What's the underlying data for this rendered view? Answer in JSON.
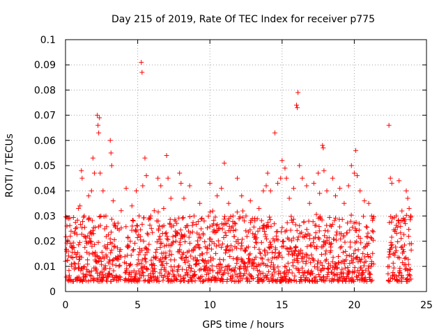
{
  "chart_data": {
    "type": "scatter",
    "title": "Day 215 of 2019, Rate Of TEC Index for receiver p775",
    "xlabel": "GPS time / hours",
    "ylabel": "ROTI / TECUs",
    "xlim": [
      0,
      25
    ],
    "ylim": [
      0,
      0.1
    ],
    "xticks": [
      0,
      5,
      10,
      15,
      20,
      25
    ],
    "yticks": [
      0,
      0.01,
      0.02,
      0.03,
      0.04,
      0.05,
      0.06,
      0.07,
      0.08,
      0.09,
      0.1
    ],
    "xtick_labels": [
      "0",
      "5",
      "10",
      "15",
      "20",
      "25"
    ],
    "ytick_labels": [
      "0",
      "0.01",
      "0.02",
      "0.03",
      "0.04",
      "0.05",
      "0.06",
      "0.07",
      "0.08",
      "0.09",
      "0.1"
    ],
    "grid": true,
    "marker": "+",
    "color": "#ff0000",
    "data_gaps_hours": [
      [
        3.85,
        4.05
      ],
      [
        21.35,
        22.3
      ]
    ],
    "series": [
      {
        "name": "ROTI",
        "points": [
          [
            0.1,
            0.026
          ],
          [
            0.2,
            0.029
          ],
          [
            0.4,
            0.018
          ],
          [
            0.7,
            0.025
          ],
          [
            0.9,
            0.033
          ],
          [
            1.0,
            0.034
          ],
          [
            1.1,
            0.048
          ],
          [
            1.15,
            0.045
          ],
          [
            1.3,
            0.03
          ],
          [
            1.6,
            0.038
          ],
          [
            1.8,
            0.04
          ],
          [
            1.9,
            0.053
          ],
          [
            2.0,
            0.047
          ],
          [
            2.2,
            0.07
          ],
          [
            2.25,
            0.066
          ],
          [
            2.3,
            0.063
          ],
          [
            2.35,
            0.069
          ],
          [
            2.4,
            0.047
          ],
          [
            2.6,
            0.04
          ],
          [
            2.8,
            0.03
          ],
          [
            3.1,
            0.06
          ],
          [
            3.15,
            0.055
          ],
          [
            3.2,
            0.05
          ],
          [
            3.3,
            0.036
          ],
          [
            3.6,
            0.025
          ],
          [
            4.2,
            0.041
          ],
          [
            4.6,
            0.034
          ],
          [
            4.9,
            0.04
          ],
          [
            5.1,
            0.03
          ],
          [
            5.25,
            0.091
          ],
          [
            5.3,
            0.087
          ],
          [
            5.35,
            0.042
          ],
          [
            5.5,
            0.053
          ],
          [
            5.6,
            0.046
          ],
          [
            5.9,
            0.03
          ],
          [
            6.4,
            0.045
          ],
          [
            6.6,
            0.042
          ],
          [
            6.8,
            0.033
          ],
          [
            7.0,
            0.054
          ],
          [
            7.1,
            0.045
          ],
          [
            7.3,
            0.037
          ],
          [
            7.6,
            0.028
          ],
          [
            7.9,
            0.047
          ],
          [
            8.0,
            0.043
          ],
          [
            8.2,
            0.037
          ],
          [
            8.6,
            0.042
          ],
          [
            8.9,
            0.03
          ],
          [
            9.3,
            0.035
          ],
          [
            9.6,
            0.028
          ],
          [
            10.0,
            0.043
          ],
          [
            10.2,
            0.032
          ],
          [
            10.5,
            0.038
          ],
          [
            10.8,
            0.041
          ],
          [
            11.0,
            0.051
          ],
          [
            11.3,
            0.035
          ],
          [
            11.6,
            0.03
          ],
          [
            11.9,
            0.045
          ],
          [
            12.2,
            0.038
          ],
          [
            12.5,
            0.03
          ],
          [
            12.8,
            0.036
          ],
          [
            13.1,
            0.029
          ],
          [
            13.4,
            0.033
          ],
          [
            13.7,
            0.04
          ],
          [
            13.9,
            0.042
          ],
          [
            14.0,
            0.047
          ],
          [
            14.2,
            0.04
          ],
          [
            14.5,
            0.063
          ],
          [
            14.7,
            0.043
          ],
          [
            14.9,
            0.045
          ],
          [
            15.0,
            0.052
          ],
          [
            15.2,
            0.049
          ],
          [
            15.3,
            0.045
          ],
          [
            15.5,
            0.037
          ],
          [
            15.8,
            0.041
          ],
          [
            16.0,
            0.074
          ],
          [
            16.05,
            0.073
          ],
          [
            16.1,
            0.079
          ],
          [
            16.2,
            0.05
          ],
          [
            16.4,
            0.045
          ],
          [
            16.7,
            0.042
          ],
          [
            16.9,
            0.035
          ],
          [
            17.2,
            0.043
          ],
          [
            17.5,
            0.047
          ],
          [
            17.6,
            0.039
          ],
          [
            17.8,
            0.058
          ],
          [
            17.85,
            0.057
          ],
          [
            17.9,
            0.048
          ],
          [
            18.1,
            0.04
          ],
          [
            18.5,
            0.045
          ],
          [
            18.7,
            0.038
          ],
          [
            19.0,
            0.041
          ],
          [
            19.3,
            0.035
          ],
          [
            19.6,
            0.042
          ],
          [
            19.8,
            0.05
          ],
          [
            20.0,
            0.047
          ],
          [
            20.1,
            0.056
          ],
          [
            20.2,
            0.046
          ],
          [
            20.4,
            0.04
          ],
          [
            20.7,
            0.036
          ],
          [
            21.0,
            0.035
          ],
          [
            21.2,
            0.03
          ],
          [
            22.4,
            0.066
          ],
          [
            22.5,
            0.045
          ],
          [
            22.6,
            0.043
          ],
          [
            22.9,
            0.03
          ],
          [
            23.1,
            0.044
          ],
          [
            23.3,
            0.032
          ],
          [
            23.6,
            0.04
          ],
          [
            23.7,
            0.037
          ],
          [
            23.8,
            0.033
          ],
          [
            23.9,
            0.03
          ]
        ]
      }
    ]
  }
}
